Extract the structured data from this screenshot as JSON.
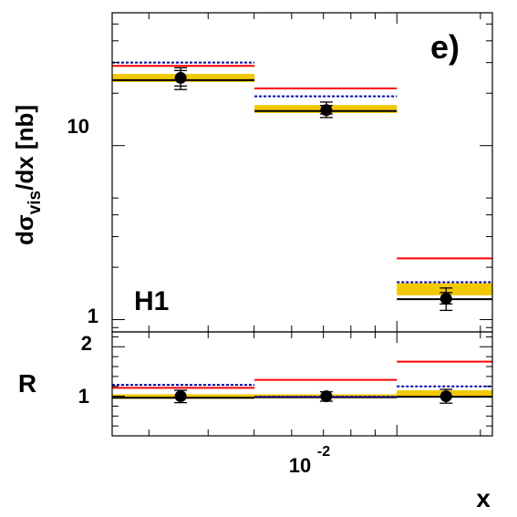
{
  "chart_data": [
    {
      "type": "step",
      "panel": "upper",
      "ylabel_prefix": "d",
      "ylabel_sigma": "σ",
      "ylabel_sub": "vis",
      "ylabel_suffix": "/dx [nb]",
      "panel_label": "e)",
      "experiment_label": "H1",
      "yscale": "log",
      "ylim": [
        0.85,
        58
      ],
      "xscale": "log",
      "xlim": [
        0.00251,
        0.0159
      ],
      "bins": [
        [
          0.00251,
          0.00501
        ],
        [
          0.00501,
          0.01
        ],
        [
          0.01,
          0.0159
        ]
      ],
      "yticks": [
        {
          "value": 10,
          "label": "10"
        },
        {
          "value": 1,
          "label": "1"
        }
      ],
      "data_points": {
        "x": [
          0.0035,
          0.0071,
          0.0127
        ],
        "y": [
          24.5,
          16.0,
          1.32
        ],
        "stat_low": [
          22.0,
          15.2,
          1.23
        ],
        "stat_high": [
          27.0,
          17.0,
          1.43
        ],
        "tot_low": [
          21.0,
          14.5,
          1.13
        ],
        "tot_high": [
          28.0,
          17.8,
          1.52
        ]
      },
      "band": {
        "color": "#f2c800",
        "low": [
          23.2,
          15.4,
          1.38
        ],
        "high": [
          25.8,
          17.1,
          1.62
        ]
      },
      "series": [
        {
          "style": "solid-black",
          "color": "#000000",
          "values": [
            23.8,
            15.8,
            1.31
          ]
        },
        {
          "style": "solid-red",
          "color": "#ff0000",
          "values": [
            28.7,
            21.3,
            2.25
          ]
        },
        {
          "style": "dotted-blue",
          "color": "#0000cc",
          "values": [
            30.0,
            19.2,
            1.64
          ]
        }
      ]
    },
    {
      "type": "step",
      "panel": "lower",
      "ylabel": "R",
      "xlabel": "x",
      "yscale": "linear",
      "ylim": [
        0.2,
        2.3
      ],
      "bins": [
        [
          0.00251,
          0.00501
        ],
        [
          0.00501,
          0.01
        ],
        [
          0.01,
          0.0159
        ]
      ],
      "yticks": [
        {
          "value": 2,
          "label": "2"
        },
        {
          "value": 1,
          "label": "1"
        }
      ],
      "xtick_major": {
        "base": "10",
        "exponent": "-2",
        "value": 0.01
      },
      "data_points": {
        "x": [
          0.0035,
          0.0071,
          0.0127
        ],
        "y": [
          1.0,
          1.0,
          1.0
        ],
        "tot_low": [
          0.87,
          0.9,
          0.86
        ],
        "tot_high": [
          1.12,
          1.09,
          1.14
        ]
      },
      "band": {
        "color": "#f2c800",
        "low": [
          0.95,
          0.96,
          1.0
        ],
        "high": [
          1.04,
          1.04,
          1.12
        ]
      },
      "series": [
        {
          "style": "solid-black",
          "color": "#000000",
          "values": [
            0.97,
            0.98,
            0.99
          ]
        },
        {
          "style": "solid-red",
          "color": "#ff0000",
          "values": [
            1.17,
            1.33,
            1.7
          ]
        },
        {
          "style": "dotted-blue",
          "color": "#0000cc",
          "values": [
            1.23,
            0.99,
            1.2
          ]
        }
      ]
    }
  ]
}
